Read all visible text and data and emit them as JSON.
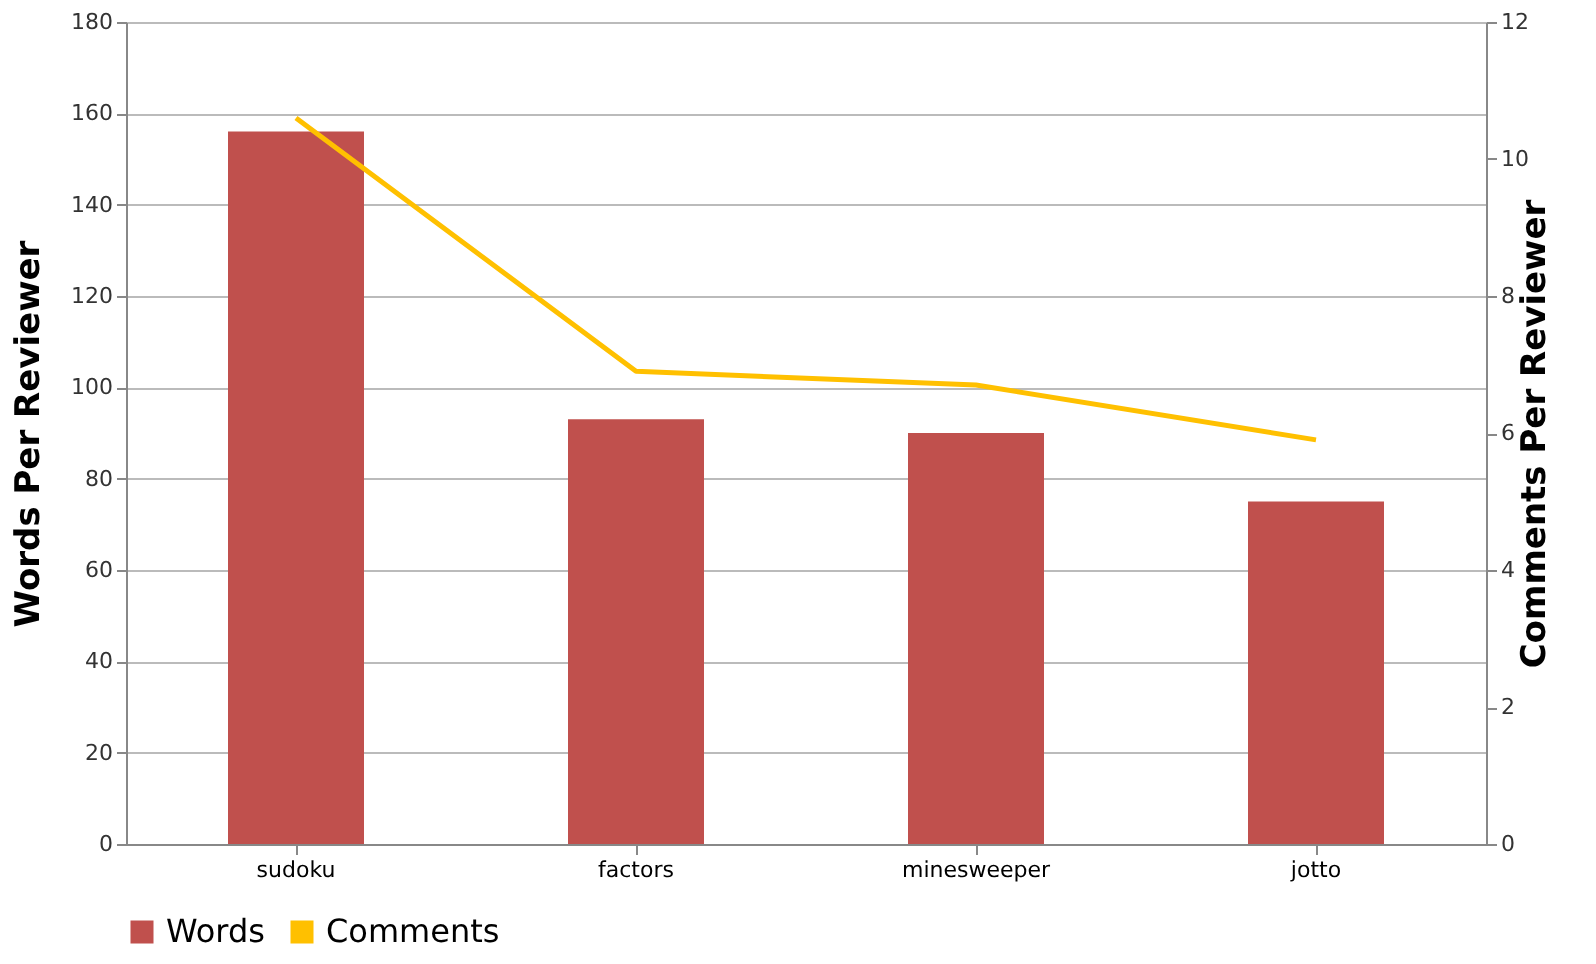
{
  "chart_data": {
    "type": "bar",
    "categories": [
      "sudoku",
      "factors",
      "minesweeper",
      "jotto"
    ],
    "ylabel": "Words Per Reviewer",
    "y2label": "Comments Per Reviewer",
    "ylim": [
      0,
      180
    ],
    "yticks": [
      0,
      20,
      40,
      60,
      80,
      100,
      120,
      140,
      160,
      180
    ],
    "y2lim": [
      0,
      12
    ],
    "y2ticks": [
      0,
      2,
      4,
      6,
      8,
      10,
      12
    ],
    "grid": "y",
    "legend": "bottom",
    "series": [
      {
        "name": "Words",
        "color": "#c0504d",
        "values": [
          156,
          93,
          90,
          75
        ]
      },
      {
        "name": "Comments",
        "type": "line",
        "axis": "y2",
        "color": "#ffc000",
        "values": [
          10.6,
          6.9,
          6.7,
          5.9
        ]
      }
    ]
  }
}
